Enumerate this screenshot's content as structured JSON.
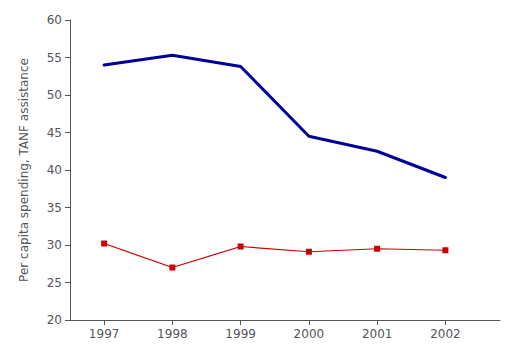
{
  "chart_data": {
    "type": "line",
    "x": [
      1997,
      1998,
      1999,
      2000,
      2001,
      2002
    ],
    "series": [
      {
        "color": "#000099",
        "marker": "none",
        "values": [
          54.0,
          55.3,
          53.8,
          44.5,
          42.5,
          39.0
        ]
      },
      {
        "color": "#cc0000",
        "marker": "square",
        "values": [
          30.2,
          27.0,
          29.8,
          29.1,
          29.5,
          29.3
        ]
      }
    ],
    "ylabel": "Per capita spending, TANF assistance",
    "xlim": [
      1996.5,
      2002.8
    ],
    "xticks": [
      1997,
      1998,
      1999,
      2000,
      2001,
      2002
    ],
    "ylim": [
      20,
      60
    ],
    "yticks": [
      20,
      25,
      30,
      35,
      40,
      45,
      50,
      55,
      60
    ],
    "grid": false
  }
}
